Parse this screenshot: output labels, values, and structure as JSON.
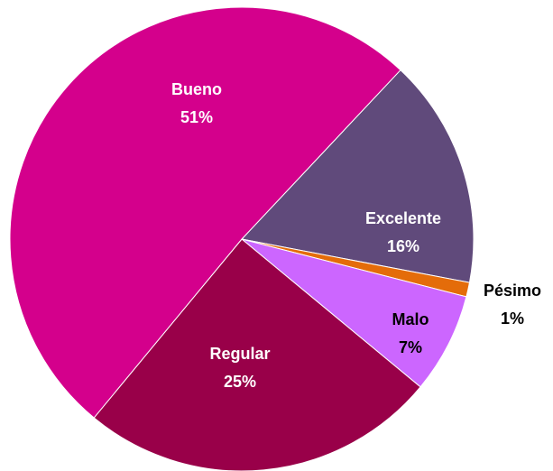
{
  "chart_data": {
    "type": "pie",
    "categories": [
      "Excelente",
      "Pésimo",
      "Malo",
      "Regular",
      "Bueno"
    ],
    "values": [
      16,
      1,
      7,
      25,
      51
    ],
    "value_labels": [
      "16%",
      "1%",
      "7%",
      "25%",
      "51%"
    ],
    "colors": [
      "#604a7b",
      "#e46c0a",
      "#cc66ff",
      "#990049",
      "#d4008c"
    ]
  }
}
